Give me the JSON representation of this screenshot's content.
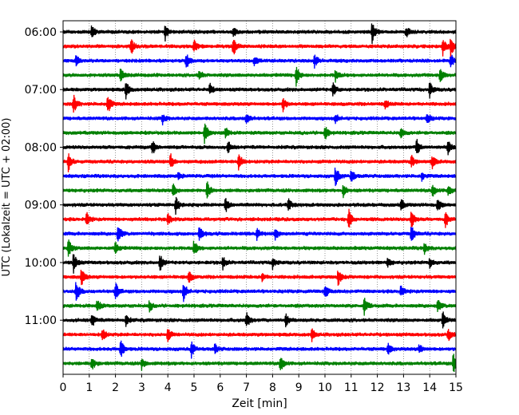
{
  "chart_data": {
    "type": "line",
    "xlabel": "Zeit  [min]",
    "ylabel": "UTC (Lokalzeit = UTC + 02:00)",
    "xlim": [
      0,
      15
    ],
    "x_ticks": [
      "0",
      "1",
      "2",
      "3",
      "4",
      "5",
      "6",
      "7",
      "8",
      "9",
      "10",
      "11",
      "12",
      "13",
      "14",
      "15"
    ],
    "y_ticks": [
      "06:00",
      "07:00",
      "08:00",
      "09:00",
      "10:00",
      "11:00"
    ],
    "grid": "vertical dotted at each minute",
    "trace_colors": [
      "#000000",
      "#ff0000",
      "#0000ff",
      "#008000"
    ],
    "traces": [
      {
        "start": "06:00",
        "events": [
          [
            1.1,
            0.9
          ],
          [
            3.9,
            1.0
          ],
          [
            6.5,
            0.8
          ],
          [
            11.8,
            1.4
          ],
          [
            13.1,
            0.7
          ]
        ]
      },
      {
        "start": "06:15",
        "events": [
          [
            2.6,
            1.0
          ],
          [
            5.0,
            0.8
          ],
          [
            6.5,
            1.2
          ],
          [
            14.5,
            1.2
          ],
          [
            14.8,
            1.4
          ]
        ]
      },
      {
        "start": "06:30",
        "events": [
          [
            0.5,
            0.7
          ],
          [
            4.7,
            1.0
          ],
          [
            7.3,
            0.6
          ],
          [
            9.6,
            0.8
          ],
          [
            14.8,
            0.9
          ]
        ]
      },
      {
        "start": "06:45",
        "events": [
          [
            2.2,
            1.1
          ],
          [
            5.2,
            0.6
          ],
          [
            8.9,
            1.3
          ],
          [
            10.4,
            0.8
          ],
          [
            14.4,
            1.2
          ]
        ]
      },
      {
        "start": "07:00",
        "events": [
          [
            2.4,
            1.2
          ],
          [
            5.6,
            0.7
          ],
          [
            10.3,
            0.9
          ],
          [
            14.0,
            1.0
          ]
        ]
      },
      {
        "start": "07:15",
        "events": [
          [
            0.4,
            1.3
          ],
          [
            1.7,
            1.4
          ],
          [
            8.4,
            0.9
          ],
          [
            12.3,
            0.6
          ]
        ]
      },
      {
        "start": "07:30",
        "events": [
          [
            3.8,
            0.7
          ],
          [
            7.0,
            0.8
          ],
          [
            10.4,
            0.6
          ],
          [
            13.9,
            0.7
          ]
        ]
      },
      {
        "start": "07:45",
        "events": [
          [
            5.4,
            1.5
          ],
          [
            6.2,
            0.7
          ],
          [
            10.0,
            0.9
          ],
          [
            12.9,
            0.7
          ]
        ]
      },
      {
        "start": "08:00",
        "events": [
          [
            3.4,
            1.0
          ],
          [
            6.3,
            0.7
          ],
          [
            13.5,
            1.1
          ],
          [
            14.7,
            1.0
          ]
        ]
      },
      {
        "start": "08:15",
        "events": [
          [
            0.2,
            1.3
          ],
          [
            4.1,
            1.0
          ],
          [
            6.7,
            1.4
          ],
          [
            13.3,
            0.8
          ],
          [
            14.1,
            0.8
          ]
        ]
      },
      {
        "start": "08:30",
        "events": [
          [
            10.4,
            1.4
          ],
          [
            11.0,
            0.9
          ],
          [
            4.4,
            0.5
          ],
          [
            13.7,
            0.5
          ]
        ]
      },
      {
        "start": "08:45",
        "events": [
          [
            4.2,
            0.8
          ],
          [
            5.5,
            1.2
          ],
          [
            10.7,
            0.8
          ],
          [
            14.1,
            0.9
          ],
          [
            14.7,
            0.7
          ]
        ]
      },
      {
        "start": "09:00",
        "events": [
          [
            4.3,
            1.2
          ],
          [
            6.2,
            1.0
          ],
          [
            8.6,
            0.8
          ],
          [
            12.9,
            0.8
          ],
          [
            14.3,
            0.9
          ]
        ]
      },
      {
        "start": "09:15",
        "events": [
          [
            0.9,
            0.8
          ],
          [
            4.0,
            0.8
          ],
          [
            10.9,
            1.4
          ],
          [
            13.3,
            1.3
          ],
          [
            14.6,
            1.0
          ]
        ]
      },
      {
        "start": "09:30",
        "events": [
          [
            2.1,
            1.4
          ],
          [
            5.2,
            1.1
          ],
          [
            7.4,
            0.9
          ],
          [
            8.1,
            0.8
          ],
          [
            13.3,
            1.1
          ]
        ]
      },
      {
        "start": "09:45",
        "events": [
          [
            0.2,
            1.1
          ],
          [
            2.0,
            0.8
          ],
          [
            5.0,
            1.0
          ],
          [
            13.8,
            0.7
          ]
        ]
      },
      {
        "start": "10:00",
        "events": [
          [
            0.4,
            1.3
          ],
          [
            3.7,
            1.1
          ],
          [
            6.1,
            0.8
          ],
          [
            8.0,
            0.7
          ],
          [
            12.4,
            0.6
          ],
          [
            14.0,
            0.7
          ]
        ]
      },
      {
        "start": "10:15",
        "events": [
          [
            0.7,
            1.2
          ],
          [
            4.8,
            0.8
          ],
          [
            10.5,
            1.2
          ],
          [
            7.6,
            0.5
          ]
        ]
      },
      {
        "start": "10:30",
        "events": [
          [
            0.5,
            1.5
          ],
          [
            2.0,
            1.1
          ],
          [
            4.6,
            1.3
          ],
          [
            10.0,
            0.9
          ],
          [
            12.9,
            0.7
          ]
        ]
      },
      {
        "start": "10:45",
        "events": [
          [
            1.3,
            0.9
          ],
          [
            3.3,
            0.7
          ],
          [
            11.5,
            1.3
          ],
          [
            14.3,
            0.9
          ]
        ]
      },
      {
        "start": "11:00",
        "events": [
          [
            1.1,
            0.9
          ],
          [
            2.4,
            0.7
          ],
          [
            7.0,
            1.2
          ],
          [
            8.5,
            0.8
          ],
          [
            14.5,
            1.0
          ]
        ]
      },
      {
        "start": "11:15",
        "events": [
          [
            1.5,
            0.9
          ],
          [
            4.0,
            0.9
          ],
          [
            9.5,
            0.7
          ],
          [
            14.7,
            0.8
          ]
        ]
      },
      {
        "start": "11:30",
        "events": [
          [
            2.2,
            1.3
          ],
          [
            4.9,
            1.0
          ],
          [
            12.4,
            0.8
          ],
          [
            13.6,
            0.6
          ],
          [
            5.8,
            0.6
          ]
        ]
      },
      {
        "start": "11:45",
        "events": [
          [
            1.1,
            0.9
          ],
          [
            3.0,
            0.8
          ],
          [
            8.3,
            1.2
          ],
          [
            14.9,
            1.3
          ]
        ]
      }
    ]
  }
}
